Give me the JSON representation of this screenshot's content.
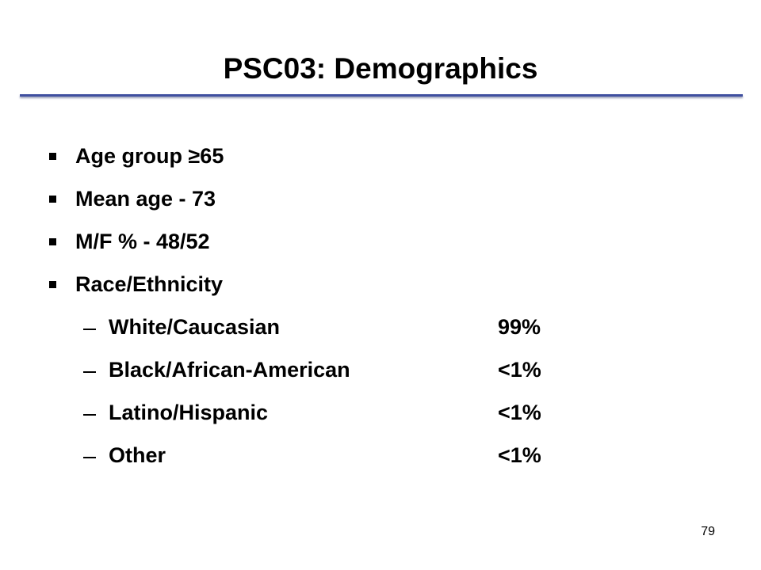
{
  "header": {
    "title": "PSC03: Demographics"
  },
  "bullets": [
    "Age group ≥65",
    "Mean age - 73",
    "M/F % - 48/52",
    "Race/Ethnicity"
  ],
  "sub_items": [
    {
      "label": "White/Caucasian",
      "value": "99%"
    },
    {
      "label": "Black/African-American",
      "value": "<1%"
    },
    {
      "label": "Latino/Hispanic",
      "value": "<1%"
    },
    {
      "label": "Other",
      "value": "<1%"
    }
  ],
  "footer": {
    "page_number": "79"
  }
}
